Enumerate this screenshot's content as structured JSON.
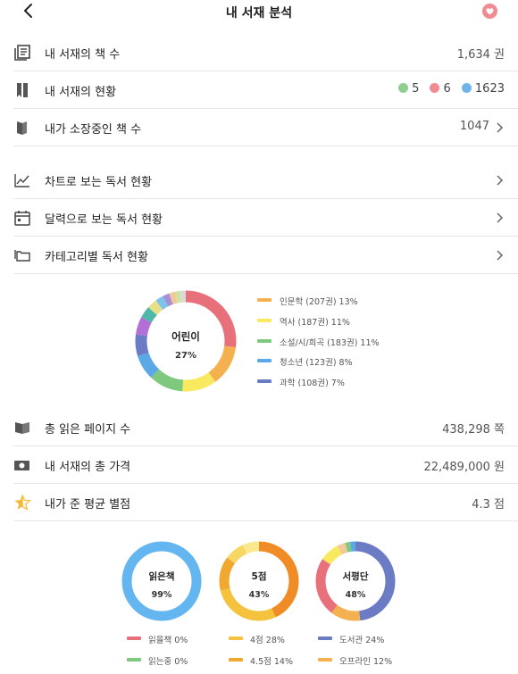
{
  "header": {
    "title": "내 서재 분석"
  },
  "stats": {
    "book_count": {
      "label": "내 서재의 책 수",
      "value": "1,634 권",
      "icon": "books-icon"
    },
    "status": {
      "label": "내 서재의 현황",
      "reading": "5",
      "wish": "6",
      "read": "1623",
      "colors": {
        "reading": "#8fce8f",
        "wish": "#f08a93",
        "read": "#6fb4e8"
      }
    },
    "owned": {
      "label": "내가 소장중인 책 수",
      "value": "1047"
    }
  },
  "menu": {
    "chart": "차트로 보는 독서 현황",
    "calendar": "달력으로 보는 독서 현황",
    "category": "카테고리별 독서 현황"
  },
  "category_chart": {
    "center_label": "어린이",
    "center_percent": "27%",
    "legend": [
      {
        "label": "인문학 (207권)  13%",
        "color": "#f5b14f"
      },
      {
        "label": "역사 (187권)  11%",
        "color": "#f9e95e"
      },
      {
        "label": "소설/시/희곡 (183권)  11%",
        "color": "#7fc97f"
      },
      {
        "label": "청소년 (123권)  8%",
        "color": "#5aa9e6"
      },
      {
        "label": "과학 (108권)  7%",
        "color": "#6b7cc4"
      }
    ]
  },
  "totals": {
    "pages": {
      "label": "총 읽은 페이지 수",
      "value": "438,298 쪽"
    },
    "price": {
      "label": "내 서재의 총 가격",
      "value": "22,489,000 원"
    },
    "rating": {
      "label": "내가 준 평균 별점",
      "value": "4.3 점"
    }
  },
  "mini_charts": [
    {
      "center": "읽은책",
      "percent": "99%"
    },
    {
      "center": "5점",
      "percent": "43%"
    },
    {
      "center": "서평단",
      "percent": "48%"
    }
  ],
  "mini_legends": {
    "read_status": [
      {
        "label": "읽을책  0%",
        "color": "#e8707a"
      },
      {
        "label": "읽는중  0%",
        "color": "#7fc97f"
      }
    ],
    "rating": [
      {
        "label": "4점  28%",
        "color": "#f5c23e"
      },
      {
        "label": "4.5점  14%",
        "color": "#f0a830"
      }
    ],
    "source": [
      {
        "label": "도서관  24%",
        "color": "#6b7cc4"
      },
      {
        "label": "오프라인  12%",
        "color": "#f5b14f"
      }
    ]
  }
}
